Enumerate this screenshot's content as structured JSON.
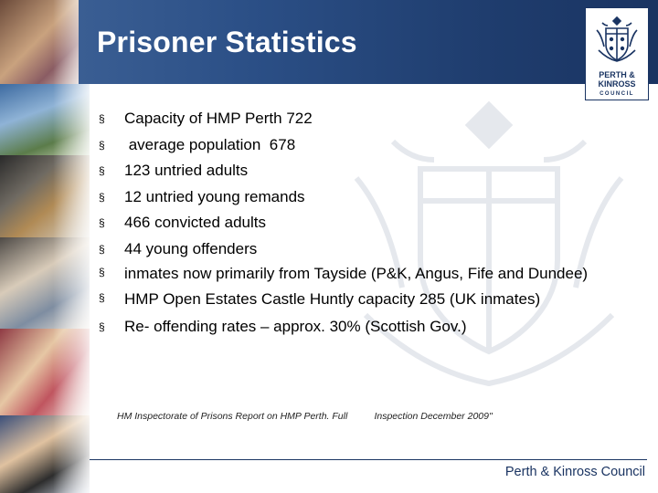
{
  "slide": {
    "title": "Prisoner Statistics",
    "bullet_marker": "§",
    "bullets": [
      "Capacity of HMP Perth  722",
      " average population  678",
      "123 untried adults",
      "12 untried young remands",
      "466 convicted adults",
      "44 young offenders",
      "inmates now primarily from Tayside (P&K, Angus, Fife and Dundee)",
      "HMP Open Estates Castle Huntly capacity 285 (UK inmates)",
      "Re- offending rates – approx. 30% (Scottish Gov.)"
    ],
    "source_note": "HM Inspectorate of Prisons Report on HMP Perth. Full          Inspection December 2009\""
  },
  "logo": {
    "line1": "PERTH &",
    "line2": "KINROSS",
    "line3": "COUNCIL"
  },
  "footer": {
    "brand": "Perth & Kinross Council"
  },
  "colors": {
    "title_bar": "#1f3d6e",
    "brand_navy": "#1a3462",
    "text": "#000000"
  },
  "icons": [
    "council-crest-icon",
    "crest-watermark"
  ]
}
